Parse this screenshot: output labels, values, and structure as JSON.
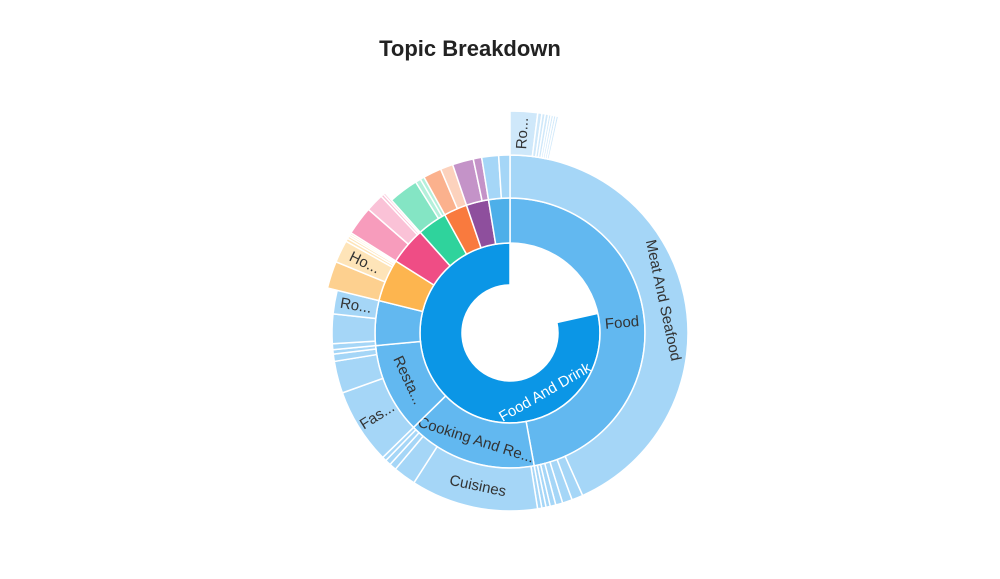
{
  "chart_data": {
    "type": "sunburst",
    "title": "Topic Breakdown",
    "root": {
      "name": "Food And Drink",
      "value": 78.5,
      "color": "#0b96e6",
      "children": [
        {
          "name": "Food",
          "value": 37,
          "color": "#62b8f0",
          "children": [
            {
              "name": "Meat And Seafood",
              "value": 34,
              "color": "#a5d6f7"
            },
            {
              "name": "",
              "value": 0.8,
              "color": "#a5d6f7"
            },
            {
              "name": "",
              "value": 0.7,
              "color": "#a5d6f7"
            },
            {
              "name": "",
              "value": 0.5,
              "color": "#a5d6f7"
            },
            {
              "name": "",
              "value": 0.4,
              "color": "#a5d6f7"
            },
            {
              "name": "",
              "value": 0.3,
              "color": "#a5d6f7"
            },
            {
              "name": "",
              "value": 0.3,
              "color": "#a5d6f7"
            }
          ]
        },
        {
          "name": "Cooking And Re...",
          "value": 12.2,
          "color": "#62b8f0",
          "children": [
            {
              "name": "",
              "value": 0.3,
              "color": "#a5d6f7"
            },
            {
              "name": "Cuisines",
              "value": 9,
              "color": "#a5d6f7"
            },
            {
              "name": "",
              "value": 1.6,
              "color": "#a5d6f7"
            },
            {
              "name": "",
              "value": 0.5,
              "color": "#a5d6f7"
            },
            {
              "name": "",
              "value": 0.4,
              "color": "#a5d6f7"
            },
            {
              "name": "",
              "value": 0.3,
              "color": "#a5d6f7"
            }
          ]
        },
        {
          "name": "Resta...",
          "value": 8.5,
          "color": "#62b8f0",
          "children": [
            {
              "name": "Fas...",
              "value": 5.2,
              "color": "#a5d6f7"
            },
            {
              "name": "",
              "value": 2.2,
              "color": "#a5d6f7"
            },
            {
              "name": "",
              "value": 0.5,
              "color": "#a5d6f7"
            },
            {
              "name": "",
              "value": 0.3,
              "color": "#a5d6f7"
            }
          ]
        },
        {
          "name": "",
          "value": 4.2,
          "color": "#62b8f0",
          "children": [
            {
              "name": "",
              "value": 0.6,
              "color": "#a5d6f7"
            },
            {
              "name": "",
              "value": 3,
              "color": "#a5d6f7"
            },
            {
              "name": "Ro...",
              "value": 2.4,
              "color": "#a5d6f7"
            }
          ]
        },
        {
          "name": "",
          "value": 4,
          "color": "#fdb54f",
          "children": [
            {
              "name": "",
              "value": 4.2,
              "color": "#fdd08f"
            },
            {
              "name": "Ho...",
              "value": 3.5,
              "color": "#fee4b8"
            },
            {
              "name": "",
              "value": 0.5,
              "color": "#fee4b8"
            },
            {
              "name": "",
              "value": 0.4,
              "color": "#fee4b8"
            },
            {
              "name": "",
              "value": 0.3,
              "color": "#fee4b8"
            },
            {
              "name": "",
              "value": 0.3,
              "color": "#fee4b8"
            }
          ]
        },
        {
          "name": "",
          "value": 3.5,
          "color": "#ef4d85",
          "children": [
            {
              "name": "",
              "value": 4,
              "color": "#f79cbc"
            },
            {
              "name": "",
              "value": 2.5,
              "color": "#fac2d7"
            },
            {
              "name": "",
              "value": 0.4,
              "color": "#fac2d7"
            },
            {
              "name": "",
              "value": 0.3,
              "color": "#fac2d7"
            }
          ]
        },
        {
          "name": "",
          "value": 2.8,
          "color": "#2fd39c",
          "children": [
            {
              "name": "",
              "value": 2.2,
              "color": "#84e5c4"
            },
            {
              "name": "",
              "value": 0.4,
              "color": "#b4f0db"
            },
            {
              "name": "",
              "value": 0.3,
              "color": "#b4f0db"
            }
          ]
        },
        {
          "name": "",
          "value": 2.2,
          "color": "#f97a3e",
          "children": [
            {
              "name": "",
              "value": 1.3,
              "color": "#fbb18d"
            },
            {
              "name": "",
              "value": 0.9,
              "color": "#fcd2bd"
            }
          ]
        },
        {
          "name": "",
          "value": 2.1,
          "color": "#8e4f9d",
          "children": [
            {
              "name": "",
              "value": 1.5,
              "color": "#c493c8"
            },
            {
              "name": "",
              "value": 0.6,
              "color": "#c493c8"
            }
          ]
        },
        {
          "name": "",
          "value": 2,
          "color": "#4dafe9",
          "children": [
            {
              "name": "",
              "value": 1.2,
              "color": "#a5d6f7"
            },
            {
              "name": "",
              "value": 0.8,
              "color": "#a5d6f7"
            }
          ]
        }
      ]
    },
    "outer_fringe": [
      {
        "parent": "Meat And Seafood",
        "children": [
          {
            "name": "Ro...",
            "value": 3.3,
            "color": "#cfe8fa"
          },
          {
            "name": "",
            "value": 0.5,
            "color": "#cfe8fa"
          },
          {
            "name": "",
            "value": 0.4,
            "color": "#cfe8fa"
          },
          {
            "name": "",
            "value": 0.4,
            "color": "#cfe8fa"
          },
          {
            "name": "",
            "value": 0.3,
            "color": "#cfe8fa"
          },
          {
            "name": "",
            "value": 0.3,
            "color": "#cfe8fa"
          },
          {
            "name": "",
            "value": 0.3,
            "color": "#cfe8fa"
          },
          {
            "name": "",
            "value": 0.3,
            "color": "#cfe8fa"
          }
        ]
      }
    ]
  }
}
